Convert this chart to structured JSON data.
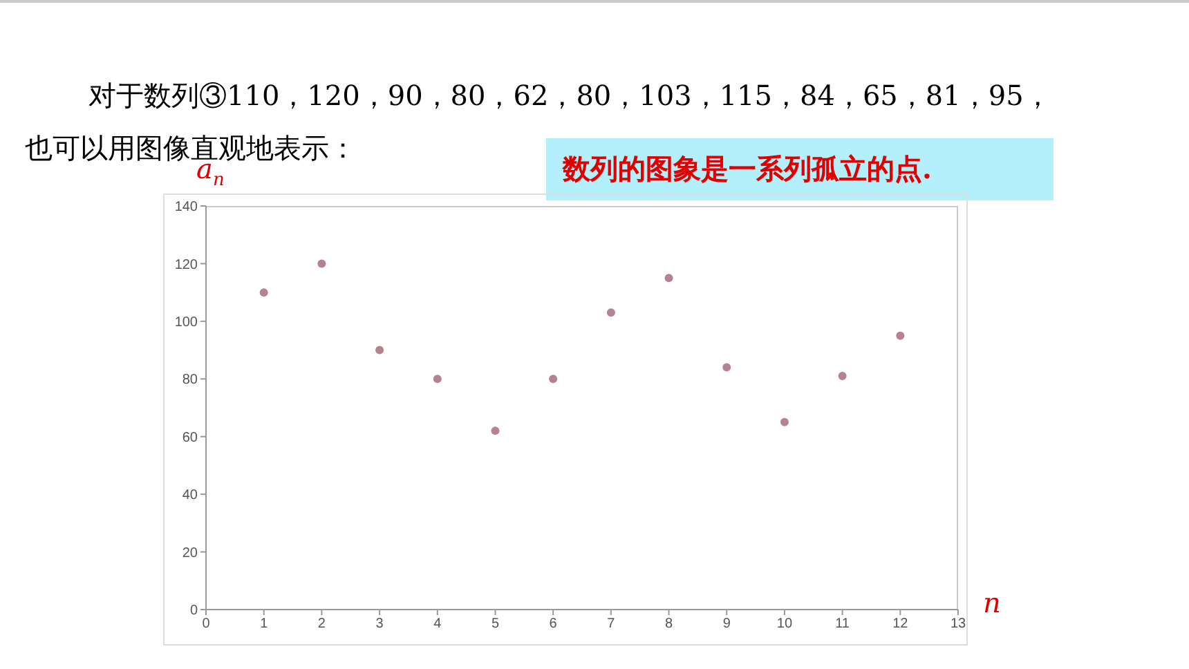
{
  "chart_data": {
    "type": "scatter",
    "title": "对于数列③110，120，90，80，62，80，103，115，84，65，81，95，",
    "subtitle": "也可以用图像直观地表示：",
    "annotations": [
      "数列的图象是一系列孤立的点."
    ],
    "xlabel": "n",
    "ylabel": "a$_{n}$",
    "x": [
      1,
      2,
      3,
      4,
      5,
      6,
      7,
      8,
      9,
      10,
      11,
      12
    ],
    "series": [
      {
        "color": "#b5838f",
        "values": [
          110,
          120,
          90,
          80,
          62,
          80,
          103,
          115,
          84,
          65,
          81,
          95
        ]
      }
    ],
    "xlim": [
      0,
      13
    ],
    "xticks": [
      0,
      1,
      2,
      3,
      4,
      5,
      6,
      7,
      8,
      9,
      10,
      11,
      12,
      13
    ],
    "ylim": [
      0,
      140
    ],
    "yticks": [
      0,
      20,
      40,
      60,
      80,
      100,
      120,
      140
    ],
    "marker": "circle"
  }
}
